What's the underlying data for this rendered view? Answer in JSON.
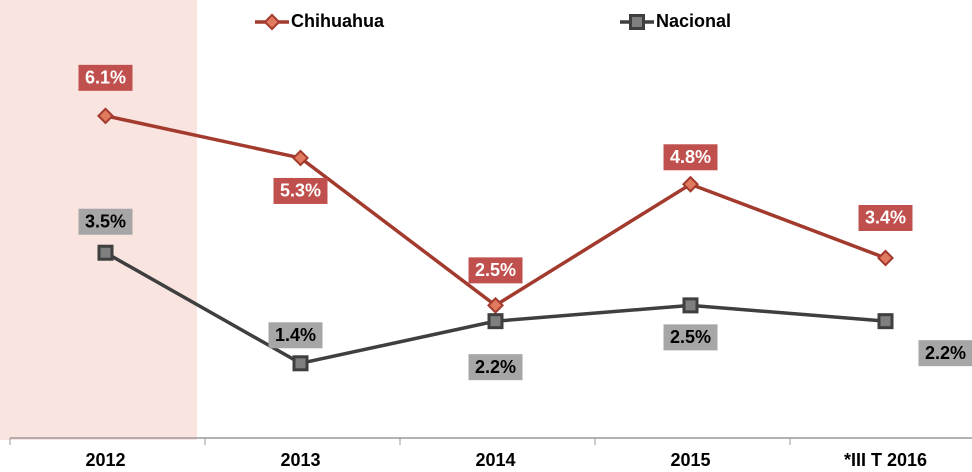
{
  "chart_data": {
    "type": "line",
    "categories": [
      "2012",
      "2013",
      "2014",
      "2015",
      "*III T 2016"
    ],
    "series": [
      {
        "name": "Chihuahua",
        "color": "#a33a2e",
        "label_color": "#c0504d",
        "marker": "diamond",
        "values": [
          6.1,
          5.3,
          2.5,
          4.8,
          3.4
        ],
        "value_labels": [
          "6.1%",
          "5.3%",
          "2.5%",
          "4.8%",
          "3.4%"
        ]
      },
      {
        "name": "Nacional",
        "color": "#3f3f3f",
        "label_color": "#a6a6a6",
        "marker": "square",
        "values": [
          3.5,
          1.4,
          2.2,
          2.5,
          2.2
        ],
        "value_labels": [
          "3.5%",
          "1.4%",
          "2.2%",
          "2.5%",
          "2.2%"
        ]
      }
    ],
    "ylim": [
      0,
      8.3
    ]
  }
}
